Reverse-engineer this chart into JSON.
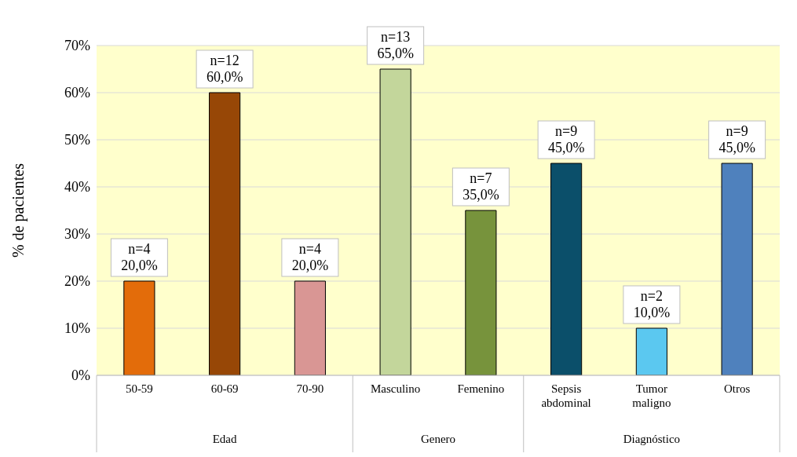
{
  "chart_data": {
    "type": "bar",
    "ylabel": "% de pacientes",
    "categories": [
      "50-59",
      "60-69",
      "70-90",
      "Masculino",
      "Femenino",
      "Sepsis abdominal",
      "Tumor maligno",
      "Otros"
    ],
    "values": [
      20,
      60,
      20,
      65,
      35,
      45,
      10,
      45
    ],
    "colors": [
      "#e36c0a",
      "#974706",
      "#d99694",
      "#c3d69b",
      "#77933c",
      "#0b4f6a",
      "#5bc8f0",
      "#4f81bd"
    ],
    "value_labels": [
      "n=4\n20,0%",
      "n=12\n60,0%",
      "n=4\n20,0%",
      "n=13\n65,0%",
      "n=7\n35,0%",
      "n=9\n45,0%",
      "n=2\n10,0%",
      "n=9\n45,0%"
    ],
    "annotations": [
      "Edad",
      "Genero",
      "Diagnóstico"
    ],
    "ylim": [
      0,
      70
    ],
    "yticks": [
      {
        "value": 0,
        "label": "0%"
      },
      {
        "value": 10,
        "label": "10%"
      },
      {
        "value": 20,
        "label": "20%"
      },
      {
        "value": 30,
        "label": "30%"
      },
      {
        "value": 40,
        "label": "40%"
      },
      {
        "value": 50,
        "label": "50%"
      },
      {
        "value": 60,
        "label": "60%"
      },
      {
        "value": 70,
        "label": "70%"
      }
    ],
    "grid": "y"
  }
}
